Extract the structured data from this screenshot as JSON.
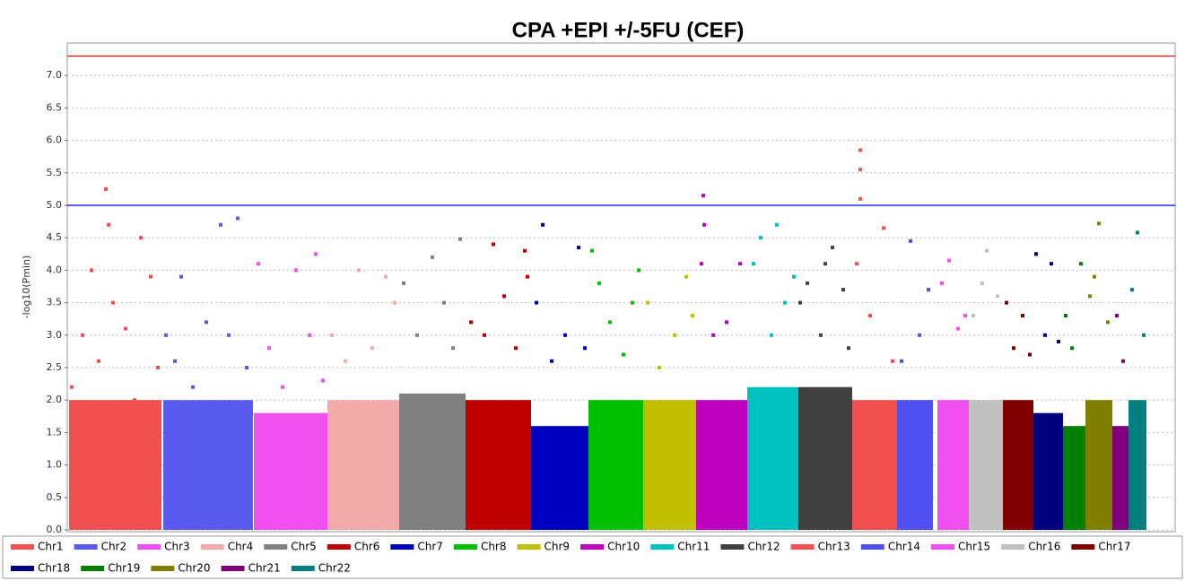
{
  "chart_data": {
    "type": "scatter",
    "title": "CPA +EPI +/-5FU (CEF)",
    "y_label": "-log10(Pmin)",
    "xlim": [
      0,
      1235
    ],
    "ylim": [
      0,
      7.5
    ],
    "yticks": [
      {
        "value": 0,
        "label": "0.0"
      },
      {
        "value": 0.5,
        "label": "0.5"
      },
      {
        "value": 1,
        "label": "1.0"
      },
      {
        "value": 1.5,
        "label": "1.5"
      },
      {
        "value": 2,
        "label": "2.0"
      },
      {
        "value": 2.5,
        "label": "2.5"
      },
      {
        "value": 3,
        "label": "3.0"
      },
      {
        "value": 3.5,
        "label": "3.5"
      },
      {
        "value": 4,
        "label": "4.0"
      },
      {
        "value": 4.5,
        "label": "4.5"
      },
      {
        "value": 5,
        "label": "5.0"
      },
      {
        "value": 5.5,
        "label": "5.5"
      },
      {
        "value": 6,
        "label": "6.0"
      },
      {
        "value": 6.5,
        "label": "6.5"
      },
      {
        "value": 7,
        "label": "7.0"
      }
    ],
    "grid": true,
    "hlines": [
      {
        "value": 7.3,
        "color": "#ff0000"
      },
      {
        "value": 5,
        "color": "#0000ff"
      }
    ],
    "series": [
      {
        "name": "Chr1",
        "color": "#f05050",
        "x_range": [
          2,
          105
        ],
        "dense_top": 2.0,
        "x": [
          5,
          17,
          27,
          35,
          43,
          46,
          51,
          65,
          75,
          82,
          93,
          101
        ],
        "values": [
          2.2,
          3.0,
          4.0,
          2.6,
          5.25,
          4.7,
          3.5,
          3.1,
          2.0,
          4.5,
          3.9,
          2.5
        ]
      },
      {
        "name": "Chr2",
        "color": "#5a5af0",
        "x_range": [
          107,
          207
        ],
        "dense_top": 2.0,
        "x": [
          110,
          120,
          127,
          140,
          155,
          171,
          180,
          190,
          200
        ],
        "values": [
          3.0,
          2.6,
          3.9,
          2.2,
          3.2,
          4.7,
          3.0,
          4.8,
          2.5
        ]
      },
      {
        "name": "Chr3",
        "color": "#f050f0",
        "x_range": [
          208,
          290
        ],
        "dense_top": 1.8,
        "x": [
          213,
          225,
          240,
          255,
          270,
          277,
          285
        ],
        "values": [
          4.1,
          2.8,
          2.2,
          4.0,
          3.0,
          4.25,
          2.3
        ]
      },
      {
        "name": "Chr4",
        "color": "#f5aaaa",
        "x_range": [
          290,
          370
        ],
        "dense_top": 2.0,
        "x": [
          295,
          310,
          325,
          340,
          355,
          365
        ],
        "values": [
          3.0,
          2.6,
          4.0,
          2.8,
          3.9,
          3.5
        ]
      },
      {
        "name": "Chr5",
        "color": "#808080",
        "x_range": [
          370,
          444
        ],
        "dense_top": 2.1,
        "x": [
          375,
          390,
          407,
          420,
          430,
          438
        ],
        "values": [
          3.8,
          3.0,
          4.2,
          3.5,
          2.8,
          4.48
        ]
      },
      {
        "name": "Chr6",
        "color": "#c00000",
        "x_range": [
          444,
          517
        ],
        "dense_top": 2.0,
        "x": [
          450,
          465,
          475,
          487,
          500,
          510,
          513
        ],
        "values": [
          3.2,
          3.0,
          4.4,
          3.6,
          2.8,
          4.3,
          3.9
        ]
      },
      {
        "name": "Chr7",
        "color": "#0000c0",
        "x_range": [
          517,
          581
        ],
        "dense_top": 1.6,
        "x": [
          523,
          530,
          540,
          555,
          570,
          577
        ],
        "values": [
          3.5,
          4.7,
          2.6,
          3.0,
          4.35,
          2.8
        ]
      },
      {
        "name": "Chr8",
        "color": "#00c000",
        "x_range": [
          581,
          642
        ],
        "dense_top": 2.0,
        "x": [
          585,
          593,
          605,
          620,
          630,
          637
        ],
        "values": [
          4.3,
          3.8,
          3.2,
          2.7,
          3.5,
          4.0
        ]
      },
      {
        "name": "Chr9",
        "color": "#c0c000",
        "x_range": [
          642,
          701
        ],
        "dense_top": 2.0,
        "x": [
          647,
          660,
          677,
          690,
          697
        ],
        "values": [
          3.5,
          2.5,
          3.0,
          3.9,
          3.3
        ]
      },
      {
        "name": "Chr10",
        "color": "#c000c0",
        "x_range": [
          701,
          758
        ],
        "dense_top": 2.0,
        "x": [
          707,
          709,
          710,
          720,
          735,
          750
        ],
        "values": [
          4.1,
          5.15,
          4.7,
          3.0,
          3.2,
          4.1
        ]
      },
      {
        "name": "Chr11",
        "color": "#00c0c0",
        "x_range": [
          758,
          815
        ],
        "dense_top": 2.2,
        "x": [
          765,
          773,
          785,
          791,
          800,
          810
        ],
        "values": [
          4.1,
          4.5,
          3.0,
          4.7,
          3.5,
          3.9
        ]
      },
      {
        "name": "Chr12",
        "color": "#404040",
        "x_range": [
          815,
          875
        ],
        "dense_top": 2.2,
        "x": [
          817,
          825,
          840,
          845,
          853,
          865,
          871
        ],
        "values": [
          3.5,
          3.8,
          3.0,
          4.1,
          4.35,
          3.7,
          2.8
        ]
      },
      {
        "name": "Chr13",
        "color": "#f05050",
        "x_range": [
          875,
          925
        ],
        "dense_top": 2.0,
        "x": [
          880,
          884,
          884,
          884,
          895,
          910,
          920
        ],
        "values": [
          4.1,
          5.85,
          5.55,
          5.1,
          3.3,
          4.65,
          2.6
        ]
      },
      {
        "name": "Chr14",
        "color": "#5050f0",
        "x_range": [
          925,
          965
        ],
        "dense_top": 2.0,
        "x": [
          930,
          940,
          950,
          960
        ],
        "values": [
          2.6,
          4.45,
          3.0,
          3.7
        ]
      },
      {
        "name": "Chr15",
        "color": "#f050f0",
        "x_range": [
          970,
          1005
        ],
        "dense_top": 2.0,
        "x": [
          975,
          983,
          993,
          1001
        ],
        "values": [
          3.8,
          4.15,
          3.1,
          3.3
        ]
      },
      {
        "name": "Chr16",
        "color": "#c0c0c0",
        "x_range": [
          1005,
          1043
        ],
        "dense_top": 2.0,
        "x": [
          1010,
          1020,
          1025,
          1037
        ],
        "values": [
          3.3,
          3.8,
          4.3,
          3.6
        ]
      },
      {
        "name": "Chr17",
        "color": "#800000",
        "x_range": [
          1043,
          1077
        ],
        "dense_top": 2.0,
        "x": [
          1047,
          1055,
          1065,
          1073
        ],
        "values": [
          3.5,
          2.8,
          3.3,
          2.7
        ]
      },
      {
        "name": "Chr18",
        "color": "#000080",
        "x_range": [
          1077,
          1110
        ],
        "dense_top": 1.8,
        "x": [
          1080,
          1090,
          1097,
          1105
        ],
        "values": [
          4.25,
          3.0,
          4.1,
          2.9
        ]
      },
      {
        "name": "Chr19",
        "color": "#008000",
        "x_range": [
          1110,
          1135
        ],
        "dense_top": 1.6,
        "x": [
          1113,
          1120,
          1130
        ],
        "values": [
          3.3,
          2.8,
          4.1
        ]
      },
      {
        "name": "Chr20",
        "color": "#808000",
        "x_range": [
          1135,
          1165
        ],
        "dense_top": 2.0,
        "x": [
          1140,
          1145,
          1150,
          1160
        ],
        "values": [
          3.6,
          3.9,
          4.72,
          3.2
        ]
      },
      {
        "name": "Chr21",
        "color": "#800080",
        "x_range": [
          1165,
          1183
        ],
        "dense_top": 1.6,
        "x": [
          1170,
          1177
        ],
        "values": [
          3.3,
          2.6
        ]
      },
      {
        "name": "Chr22",
        "color": "#008080",
        "x_range": [
          1183,
          1203
        ],
        "dense_top": 2.0,
        "x": [
          1187,
          1193,
          1200
        ],
        "values": [
          3.7,
          4.58,
          3.0
        ]
      }
    ]
  }
}
